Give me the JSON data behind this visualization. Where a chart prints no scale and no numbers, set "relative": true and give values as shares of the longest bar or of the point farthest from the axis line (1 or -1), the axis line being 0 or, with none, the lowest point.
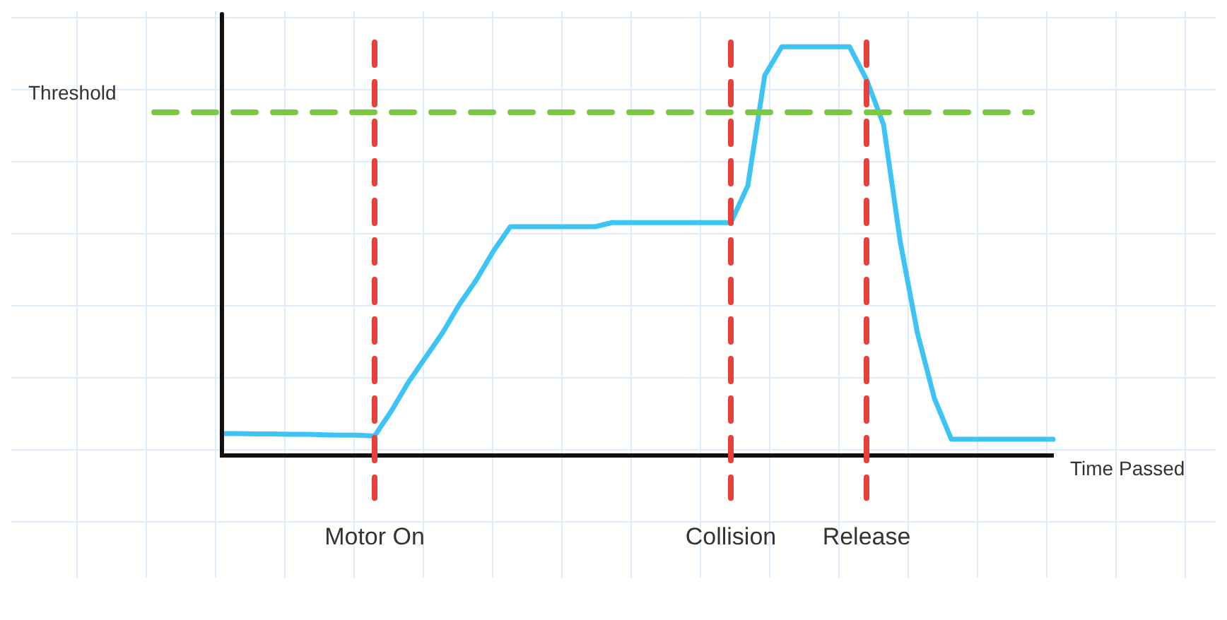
{
  "chart_data": {
    "type": "line",
    "relative": true,
    "xlabel": "Time Passed",
    "marker": "none",
    "legend": false,
    "categories": [
      null,
      null,
      null,
      null,
      null,
      null,
      null,
      null,
      null,
      "Motor On",
      null,
      null,
      null,
      null,
      null,
      null,
      null,
      null,
      null,
      null,
      null,
      null,
      null,
      null,
      null,
      null,
      null,
      null,
      null,
      null,
      "Collision",
      null,
      null,
      null,
      null,
      null,
      null,
      null,
      "Release",
      null,
      null,
      null,
      null,
      null,
      null,
      null,
      null,
      null,
      null,
      null
    ],
    "series": [
      {
        "color": "#3ec3f5",
        "values": [
          0.054,
          0.054,
          0.053,
          0.053,
          0.052,
          0.052,
          0.051,
          0.05,
          0.05,
          0.048,
          0.11,
          0.18,
          0.24,
          0.3,
          0.37,
          0.43,
          0.5,
          0.56,
          0.56,
          0.56,
          0.56,
          0.56,
          0.56,
          0.57,
          0.57,
          0.57,
          0.57,
          0.57,
          0.57,
          0.57,
          0.57,
          0.66,
          0.93,
          1,
          1,
          1,
          1,
          1,
          0.92,
          0.81,
          0.52,
          0.3,
          0.14,
          0.04,
          0.04,
          0.04,
          0.04,
          0.04,
          0.04,
          0.04
        ]
      }
    ],
    "ref_lines": [
      {
        "axis": "y",
        "value": 0.84,
        "label": "Threshold",
        "color": "#7ac943",
        "line_style": "dashed"
      },
      {
        "axis": "x",
        "value": "Motor On",
        "color": "#e8413c",
        "line_style": "dashed"
      },
      {
        "axis": "x",
        "value": "Collision",
        "color": "#e8413c",
        "line_style": "dashed"
      },
      {
        "axis": "x",
        "value": "Release",
        "color": "#e8413c",
        "line_style": "dashed"
      }
    ]
  }
}
